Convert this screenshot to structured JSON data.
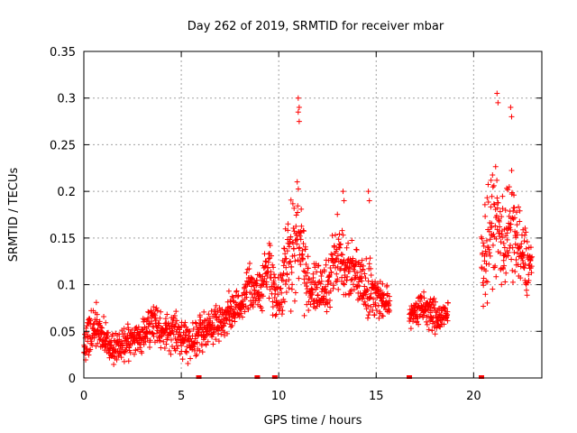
{
  "chart_data": {
    "type": "scatter",
    "title": "Day 262 of 2019, SRMTID for receiver mbar",
    "xlabel": "GPS time / hours",
    "ylabel": "SRMTID / TECUs",
    "xlim": [
      0,
      23.5
    ],
    "ylim": [
      0,
      0.35
    ],
    "xticks": [
      0,
      5,
      10,
      15,
      20
    ],
    "yticks": [
      0,
      0.05,
      0.1,
      0.15,
      0.2,
      0.25,
      0.3,
      0.35
    ],
    "grid": true,
    "marker": "+",
    "color": "#ff0000",
    "baseline_marks_x": [
      5.9,
      8.9,
      9.8,
      16.7,
      20.4
    ],
    "series": [
      {
        "name": "SRMTID",
        "envelope": [
          [
            0.0,
            0.035,
            0.015
          ],
          [
            0.3,
            0.05,
            0.03
          ],
          [
            0.6,
            0.055,
            0.025
          ],
          [
            1.0,
            0.045,
            0.02
          ],
          [
            1.5,
            0.03,
            0.015
          ],
          [
            2.0,
            0.035,
            0.02
          ],
          [
            2.5,
            0.04,
            0.02
          ],
          [
            3.0,
            0.045,
            0.02
          ],
          [
            3.5,
            0.06,
            0.025
          ],
          [
            4.0,
            0.05,
            0.02
          ],
          [
            4.5,
            0.05,
            0.02
          ],
          [
            5.0,
            0.045,
            0.02
          ],
          [
            5.5,
            0.04,
            0.02
          ],
          [
            6.0,
            0.05,
            0.02
          ],
          [
            6.5,
            0.055,
            0.02
          ],
          [
            7.0,
            0.06,
            0.02
          ],
          [
            7.5,
            0.07,
            0.02
          ],
          [
            8.0,
            0.075,
            0.02
          ],
          [
            8.5,
            0.1,
            0.025
          ],
          [
            9.0,
            0.09,
            0.02
          ],
          [
            9.5,
            0.12,
            0.03
          ],
          [
            10.0,
            0.08,
            0.03
          ],
          [
            10.5,
            0.13,
            0.05
          ],
          [
            11.0,
            0.16,
            0.07
          ],
          [
            11.5,
            0.1,
            0.03
          ],
          [
            12.0,
            0.09,
            0.03
          ],
          [
            12.5,
            0.1,
            0.03
          ],
          [
            13.0,
            0.13,
            0.04
          ],
          [
            13.5,
            0.12,
            0.035
          ],
          [
            14.0,
            0.11,
            0.03
          ],
          [
            14.5,
            0.1,
            0.03
          ],
          [
            15.0,
            0.09,
            0.03
          ],
          [
            15.5,
            0.08,
            0.02
          ],
          [
            16.8,
            0.07,
            0.015
          ],
          [
            17.5,
            0.075,
            0.02
          ],
          [
            18.0,
            0.065,
            0.02
          ],
          [
            18.6,
            0.065,
            0.015
          ],
          [
            20.5,
            0.13,
            0.05
          ],
          [
            21.0,
            0.17,
            0.06
          ],
          [
            21.5,
            0.15,
            0.06
          ],
          [
            22.0,
            0.16,
            0.06
          ],
          [
            22.5,
            0.13,
            0.04
          ],
          [
            23.0,
            0.12,
            0.03
          ]
        ],
        "segments": [
          [
            0.0,
            15.7
          ],
          [
            16.7,
            18.7
          ],
          [
            20.4,
            23.0
          ]
        ],
        "peaks": [
          [
            11.0,
            0.3
          ],
          [
            11.0,
            0.285
          ],
          [
            21.2,
            0.305
          ],
          [
            21.9,
            0.29
          ],
          [
            13.3,
            0.2
          ],
          [
            14.6,
            0.2
          ]
        ]
      }
    ]
  }
}
